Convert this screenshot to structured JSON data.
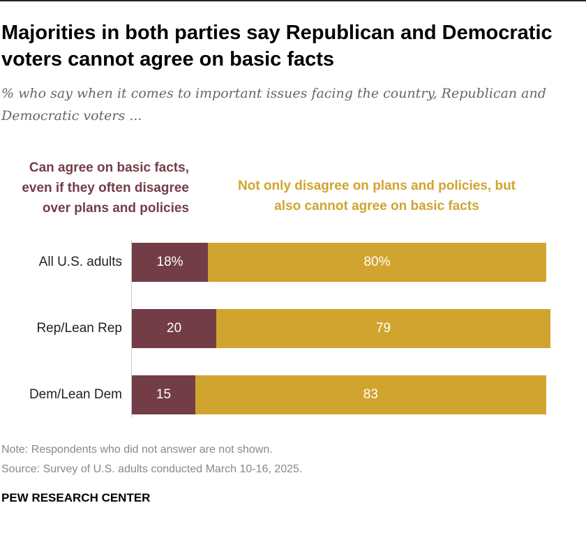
{
  "title": "Majorities in both parties say Republican and Democratic voters cannot agree on basic facts",
  "subtitle": "% who say when it comes to important issues facing the country, Republican and Democratic voters ...",
  "colors": {
    "agree": "#733D47",
    "disagree": "#D1A42F"
  },
  "chart_data": {
    "type": "bar",
    "orientation": "horizontal-stacked",
    "categories": [
      "All U.S. adults",
      "Rep/Lean Rep",
      "Dem/Lean Dem"
    ],
    "series": [
      {
        "name": "Can agree on basic facts, even if they often disagree over plans and policies",
        "values": [
          18,
          20,
          15
        ],
        "labels": [
          "18%",
          "20",
          "15"
        ]
      },
      {
        "name": "Not only disagree on plans and policies, but also cannot agree on basic facts",
        "values": [
          80,
          79,
          83
        ],
        "labels": [
          "80%",
          "79",
          "83"
        ]
      }
    ],
    "xlim": [
      0,
      100
    ],
    "grid": false
  },
  "notes": {
    "note": "Note: Respondents who did not answer are not shown.",
    "source": "Source: Survey of U.S. adults conducted March 10-16, 2025.",
    "brand": "PEW RESEARCH CENTER"
  }
}
